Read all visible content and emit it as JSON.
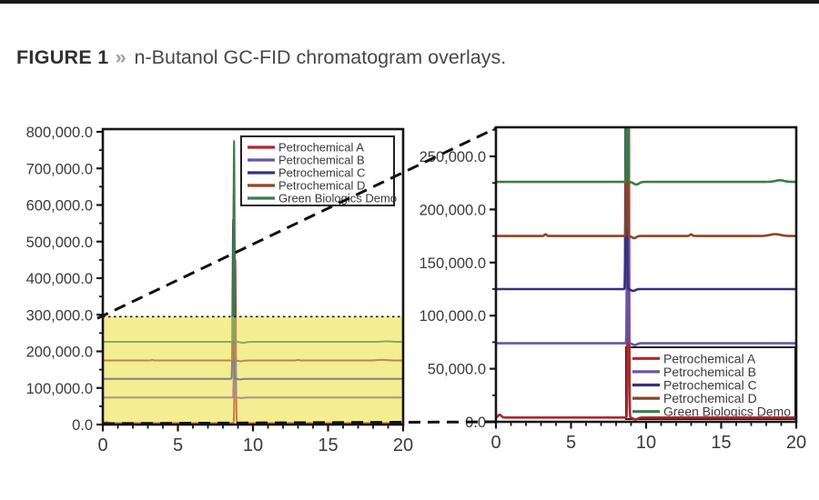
{
  "figure": {
    "label": "FIGURE 1",
    "separator": "»",
    "title": "n-Butanol GC-FID chromatogram overlays."
  },
  "legend": {
    "entries": [
      {
        "label": "Petrochemical A",
        "color": "#b0262e"
      },
      {
        "label": "Petrochemical B",
        "color": "#6a55a5"
      },
      {
        "label": "Petrochemical C",
        "color": "#39307f"
      },
      {
        "label": "Petrochemical D",
        "color": "#8a4524"
      },
      {
        "label": "Green Biologics Demo",
        "color": "#3a7d4a"
      }
    ]
  },
  "chart_data": {
    "type": "line",
    "title": "n-Butanol GC-FID chromatogram overlays",
    "xlabel": "",
    "ylabel": "",
    "series": [
      {
        "name": "Petrochemical A",
        "color": "#b0262e",
        "baseline": 4000,
        "peak_rt": 8.82,
        "peak_apex": 450000,
        "peak_width": 0.05,
        "post_dip": {
          "x": 9.3,
          "amp": 1800,
          "w": 0.2
        },
        "bumps": [
          {
            "x": 0.25,
            "amp": 2600,
            "w": 0.15
          }
        ]
      },
      {
        "name": "Petrochemical B",
        "color": "#6a55a5",
        "baseline": 74000,
        "peak_rt": 8.78,
        "peak_apex": 500000,
        "peak_width": 0.05,
        "post_dip": {
          "x": 9.25,
          "amp": 1700,
          "w": 0.2
        },
        "bumps": []
      },
      {
        "name": "Petrochemical C",
        "color": "#39307f",
        "baseline": 125000,
        "peak_rt": 8.68,
        "peak_apex": 560000,
        "peak_width": 0.05,
        "post_dip": {
          "x": 9.15,
          "amp": 1700,
          "w": 0.2
        },
        "bumps": []
      },
      {
        "name": "Petrochemical D",
        "color": "#8a4524",
        "baseline": 175000,
        "peak_rt": 8.72,
        "peak_apex": 630000,
        "peak_width": 0.05,
        "post_dip": {
          "x": 9.2,
          "amp": 2000,
          "w": 0.2
        },
        "bumps": [
          {
            "x": 3.3,
            "amp": 1600,
            "w": 0.1
          },
          {
            "x": 13.0,
            "amp": 1500,
            "w": 0.12
          },
          {
            "x": 18.6,
            "amp": 1700,
            "w": 0.5
          }
        ]
      },
      {
        "name": "Green Biologics Demo",
        "color": "#3a7d4a",
        "baseline": 226000,
        "peak_rt": 8.74,
        "peak_apex": 775000,
        "peak_width": 0.05,
        "post_dip": {
          "x": 9.35,
          "amp": 2500,
          "w": 0.25
        },
        "bumps": [
          {
            "x": 18.9,
            "amp": 1500,
            "w": 0.4
          }
        ]
      }
    ],
    "panels": [
      {
        "id": "full-scale",
        "xlim": [
          0,
          20
        ],
        "ylim": [
          0,
          810000
        ],
        "x_ticks": {
          "values": [
            0,
            5,
            10,
            15,
            20
          ],
          "labels": [
            "0",
            "5",
            "10",
            "15",
            "20"
          ]
        },
        "x_minor_step": 1,
        "y_ticks": {
          "values": [
            0,
            100000,
            200000,
            300000,
            400000,
            500000,
            600000,
            700000,
            800000
          ],
          "labels": [
            "0.0",
            "100,000.0",
            "200,000.0",
            "300,000.0",
            "400,000.0",
            "500,000.0",
            "600,000.0",
            "700,000.0",
            "800,000.0"
          ]
        },
        "y_minor_step": 50000,
        "grid": false,
        "legend_position": "upper-center",
        "highlight_region": {
          "vmin": 0,
          "vmax": 295000,
          "fill": "#f5efa4",
          "top_border": "dotted"
        }
      },
      {
        "id": "zoomed",
        "xlim": [
          0,
          20
        ],
        "ylim": [
          0,
          277000
        ],
        "x_ticks": {
          "values": [
            0,
            5,
            10,
            15,
            20
          ],
          "labels": [
            "0",
            "5",
            "10",
            "15",
            "20"
          ]
        },
        "x_minor_step": 1,
        "y_ticks": {
          "values": [
            0,
            50000,
            100000,
            150000,
            200000,
            250000
          ],
          "labels": [
            "0.0",
            "50,000.0",
            "100,000.0",
            "150,000.0",
            "200,000.0",
            "250,000.0"
          ]
        },
        "y_minor_step": 25000,
        "grid": false,
        "legend_position": "lower-right",
        "highlight_region": null
      }
    ],
    "callout": {
      "style": "dashed-black",
      "meaning": "highlighted 0-295,000 band of left panel expanded into right panel"
    }
  }
}
